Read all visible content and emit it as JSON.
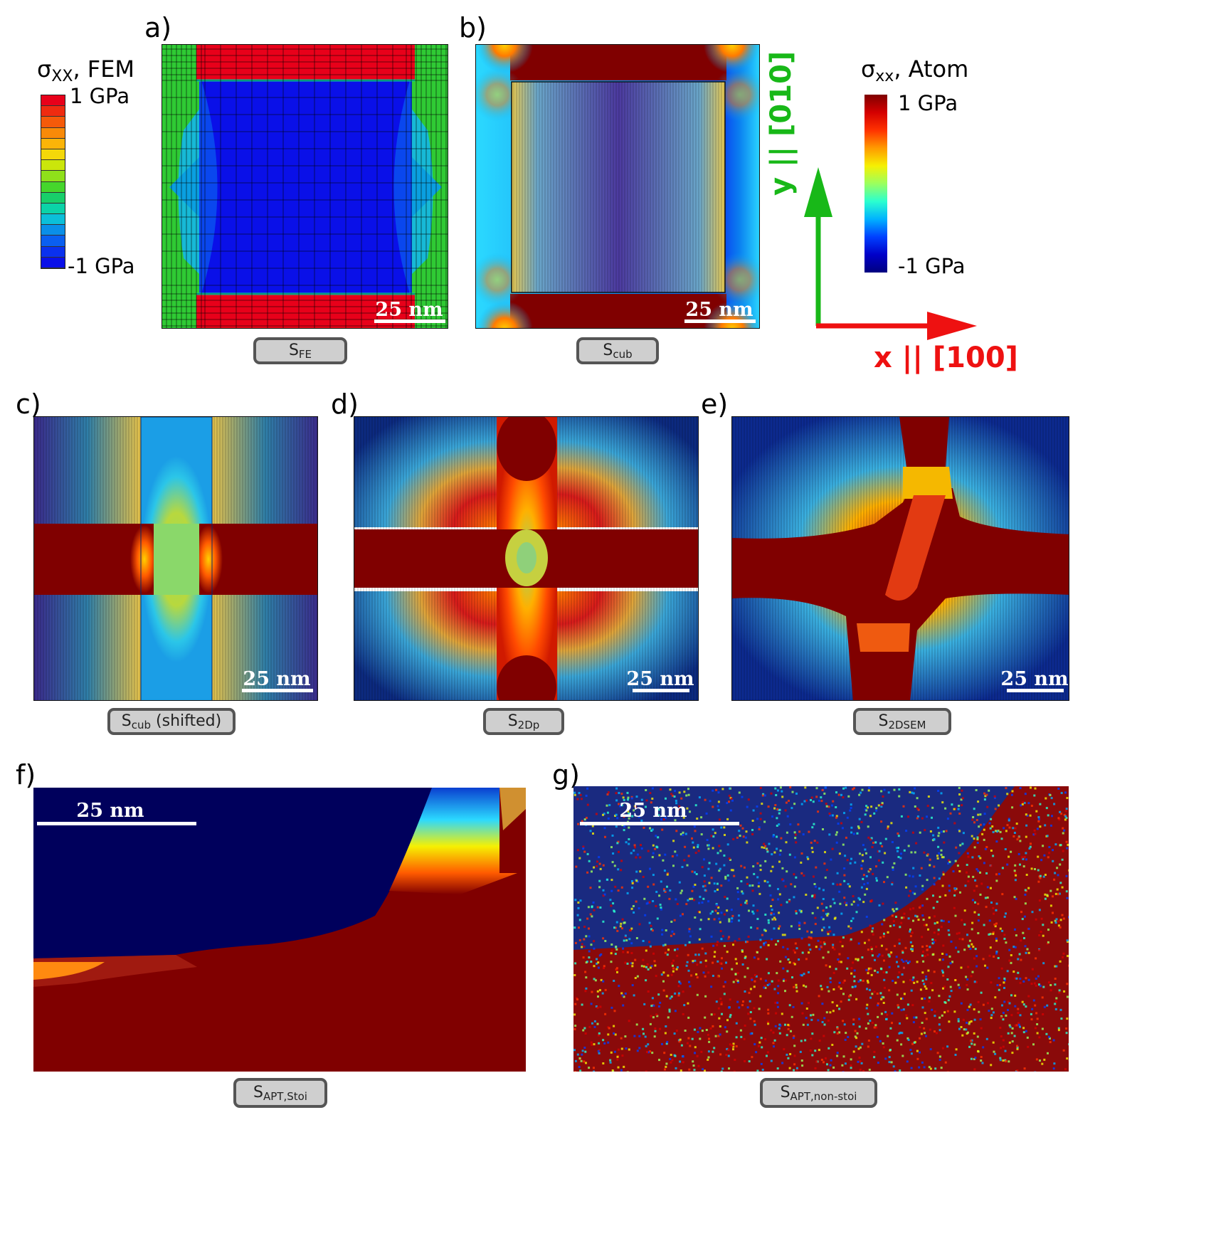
{
  "figure": {
    "panels": [
      {
        "label": "a)",
        "tag_main": "S",
        "tag_sub": "FE",
        "tag_suffix": "",
        "scale": "25 nm"
      },
      {
        "label": "b)",
        "tag_main": "S",
        "tag_sub": "cub",
        "tag_suffix": "",
        "scale": "25 nm"
      },
      {
        "label": "c)",
        "tag_main": "S",
        "tag_sub": "cub",
        "tag_suffix": " (shifted)",
        "scale": "25 nm"
      },
      {
        "label": "d)",
        "tag_main": "S",
        "tag_sub": "2Dp",
        "tag_suffix": "",
        "scale": "25 nm"
      },
      {
        "label": "e)",
        "tag_main": "S",
        "tag_sub": "2DSEM",
        "tag_suffix": "",
        "scale": "25 nm"
      },
      {
        "label": "f)",
        "tag_main": "S",
        "tag_sub": "APT,Stoi",
        "tag_suffix": "",
        "scale": "25 nm"
      },
      {
        "label": "g)",
        "tag_main": "S",
        "tag_sub": "APT,non-stoi",
        "tag_suffix": "",
        "scale": "25 nm"
      }
    ],
    "colorbar_fem": {
      "title_main": "σ",
      "title_sub": "XX",
      "title_rest": ", FEM",
      "max": "1 GPa",
      "min": "-1 GPa",
      "colors": [
        "#e8001a",
        "#ef2b10",
        "#f55a0a",
        "#f98a08",
        "#fbb408",
        "#f4d80a",
        "#cbe60b",
        "#8fe01a",
        "#45d62c",
        "#18cf6a",
        "#0bd3a8",
        "#0bbfd9",
        "#0a8fe8",
        "#0a5ff0",
        "#0a31ee",
        "#0a10e8"
      ]
    },
    "colorbar_atom": {
      "title_main": "σ",
      "title_sub": "xx",
      "title_rest": ", Atom",
      "max": "1 GPa",
      "min": "-1 GPa",
      "colors": [
        "#7f0000",
        "#d40000",
        "#ff3200",
        "#ff9a00",
        "#f6f002",
        "#9bff5e",
        "#2bffcf",
        "#00b2ff",
        "#0040ff",
        "#0000c8",
        "#00007f"
      ]
    },
    "axes": {
      "x_label": "x || [100]",
      "y_label": "y || [010]",
      "x_color": "#ee1111",
      "y_color": "#18b818"
    }
  }
}
